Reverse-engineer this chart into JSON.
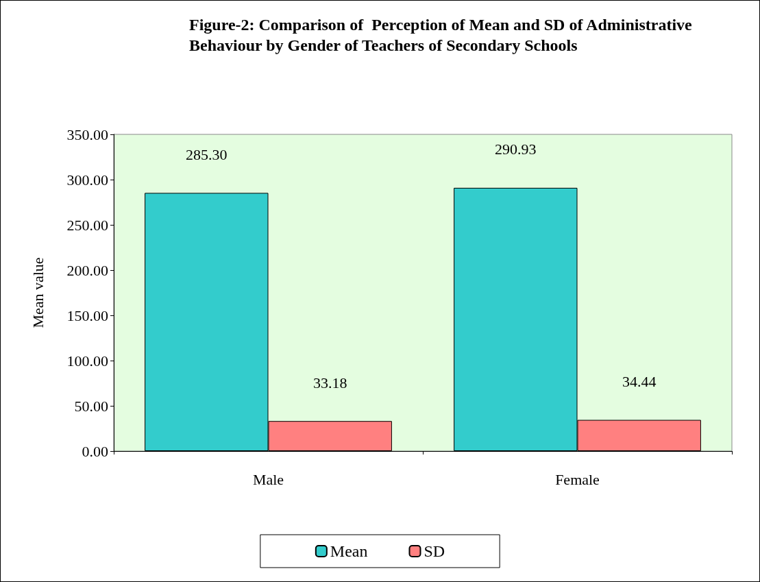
{
  "chart_data": {
    "type": "bar",
    "title": "Figure-2: Comparison of  Perception of Mean and SD of Administrative Behaviour by Gender of Teachers of Secondary Schools",
    "ylabel": "Mean value",
    "categories": [
      "Male",
      "Female"
    ],
    "series": [
      {
        "name": "Mean",
        "color": "#33cccc",
        "values": [
          285.3,
          290.93
        ],
        "value_labels": [
          "285.30",
          "290.93"
        ]
      },
      {
        "name": "SD",
        "color": "#ff8080",
        "values": [
          33.18,
          34.44
        ],
        "value_labels": [
          "33.18",
          "34.44"
        ]
      }
    ],
    "ylim": [
      0,
      350
    ],
    "yticks": [
      {
        "value": 0,
        "label": "0.00"
      },
      {
        "value": 50,
        "label": "50.00"
      },
      {
        "value": 100,
        "label": "100.00"
      },
      {
        "value": 150,
        "label": "150.00"
      },
      {
        "value": 200,
        "label": "200.00"
      },
      {
        "value": 250,
        "label": "250.00"
      },
      {
        "value": 300,
        "label": "300.00"
      },
      {
        "value": 350,
        "label": "350.00"
      }
    ],
    "grid": false,
    "legend": "bottom"
  }
}
